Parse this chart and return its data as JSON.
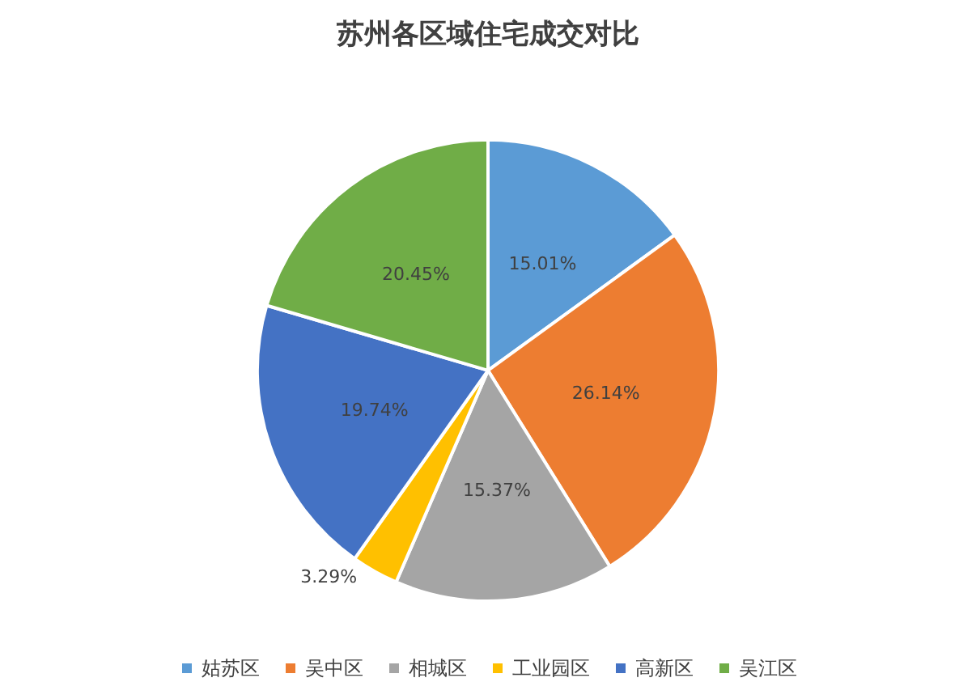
{
  "chart_data": {
    "type": "pie",
    "title": "苏州各区域住宅成交对比",
    "categories": [
      "姑苏区",
      "吴中区",
      "相城区",
      "工业园区",
      "高新区",
      "吴江区"
    ],
    "values": [
      15.01,
      26.14,
      15.37,
      3.29,
      19.74,
      20.45
    ],
    "colors": [
      "#5b9bd5",
      "#ed7d31",
      "#a5a5a5",
      "#ffc000",
      "#4472c4",
      "#70ad47"
    ],
    "value_labels": [
      "15.01%",
      "26.14%",
      "15.37%",
      "3.29%",
      "19.74%",
      "20.45%"
    ],
    "legend": "bottom"
  }
}
